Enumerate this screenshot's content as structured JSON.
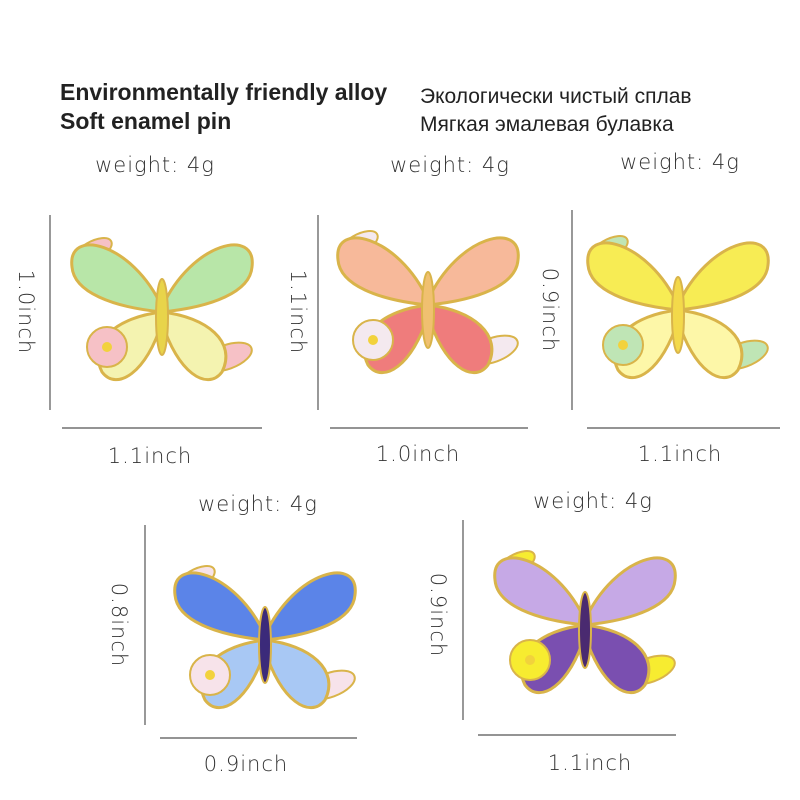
{
  "header": {
    "left": [
      "Environmentally friendly alloy",
      "Soft enamel pin"
    ],
    "right": [
      "Экологически чистый сплав",
      "Мягкая эмалевая булавка"
    ]
  },
  "products": [
    {
      "weight": "weight: 4g",
      "height": "1.0inch",
      "width": "1.1inch"
    },
    {
      "weight": "weight: 4g",
      "height": "1.1inch",
      "width": "1.0inch"
    },
    {
      "weight": "weight: 4g",
      "height": "0.9inch",
      "width": "1.1inch"
    },
    {
      "weight": "weight: 4g",
      "height": "0.8inch",
      "width": "0.9inch"
    },
    {
      "weight": "weight: 4g",
      "height": "0.9inch",
      "width": "1.1inch"
    }
  ]
}
